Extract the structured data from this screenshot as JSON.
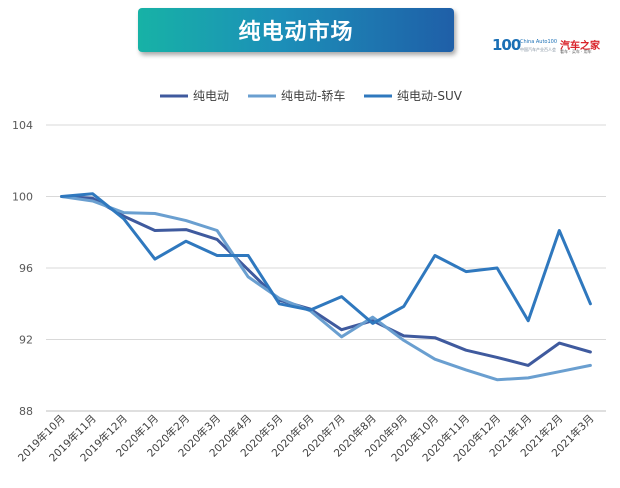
{
  "title": "纯电动市场",
  "logo": {
    "mark": "100",
    "sub": "China Auto100",
    "sub2": "中国汽车产业百人会",
    "brand": "汽车之家",
    "tag": "看车 · 买车 · 用车"
  },
  "chart_data": {
    "type": "line",
    "title": "",
    "xlabel": "",
    "ylabel": "",
    "ylim": [
      88,
      104
    ],
    "yticks": [
      88,
      92,
      96,
      100,
      104
    ],
    "grid": true,
    "legend_position": "top-center",
    "categories": [
      "2019年10月",
      "2019年11月",
      "2019年12月",
      "2020年1月",
      "2020年2月",
      "2020年3月",
      "2020年4月",
      "2020年5月",
      "2020年6月",
      "2020年7月",
      "2020年8月",
      "2020年9月",
      "2020年10月",
      "2020年11月",
      "2020年12月",
      "2021年1月",
      "2021年2月",
      "2021年3月"
    ],
    "series": [
      {
        "name": "纯电动",
        "color": "#3f5a9e",
        "values": [
          100,
          99.9,
          98.9,
          98.1,
          98.15,
          97.6,
          95.9,
          94.2,
          93.7,
          92.55,
          93.05,
          92.2,
          92.1,
          91.4,
          91.0,
          90.55,
          91.8,
          91.3
        ]
      },
      {
        "name": "纯电动-轿车",
        "color": "#6a9fd0",
        "values": [
          100,
          99.75,
          99.1,
          99.05,
          98.65,
          98.1,
          95.5,
          94.3,
          93.6,
          92.15,
          93.25,
          91.95,
          90.9,
          90.3,
          89.75,
          89.85,
          90.2,
          90.55
        ]
      },
      {
        "name": "纯电动-SUV",
        "color": "#2f78be",
        "values": [
          100,
          100.15,
          98.75,
          96.5,
          97.5,
          96.7,
          96.7,
          94.0,
          93.65,
          94.4,
          92.9,
          93.85,
          96.7,
          95.8,
          96.0,
          93.05,
          98.1,
          94.0
        ]
      }
    ]
  }
}
